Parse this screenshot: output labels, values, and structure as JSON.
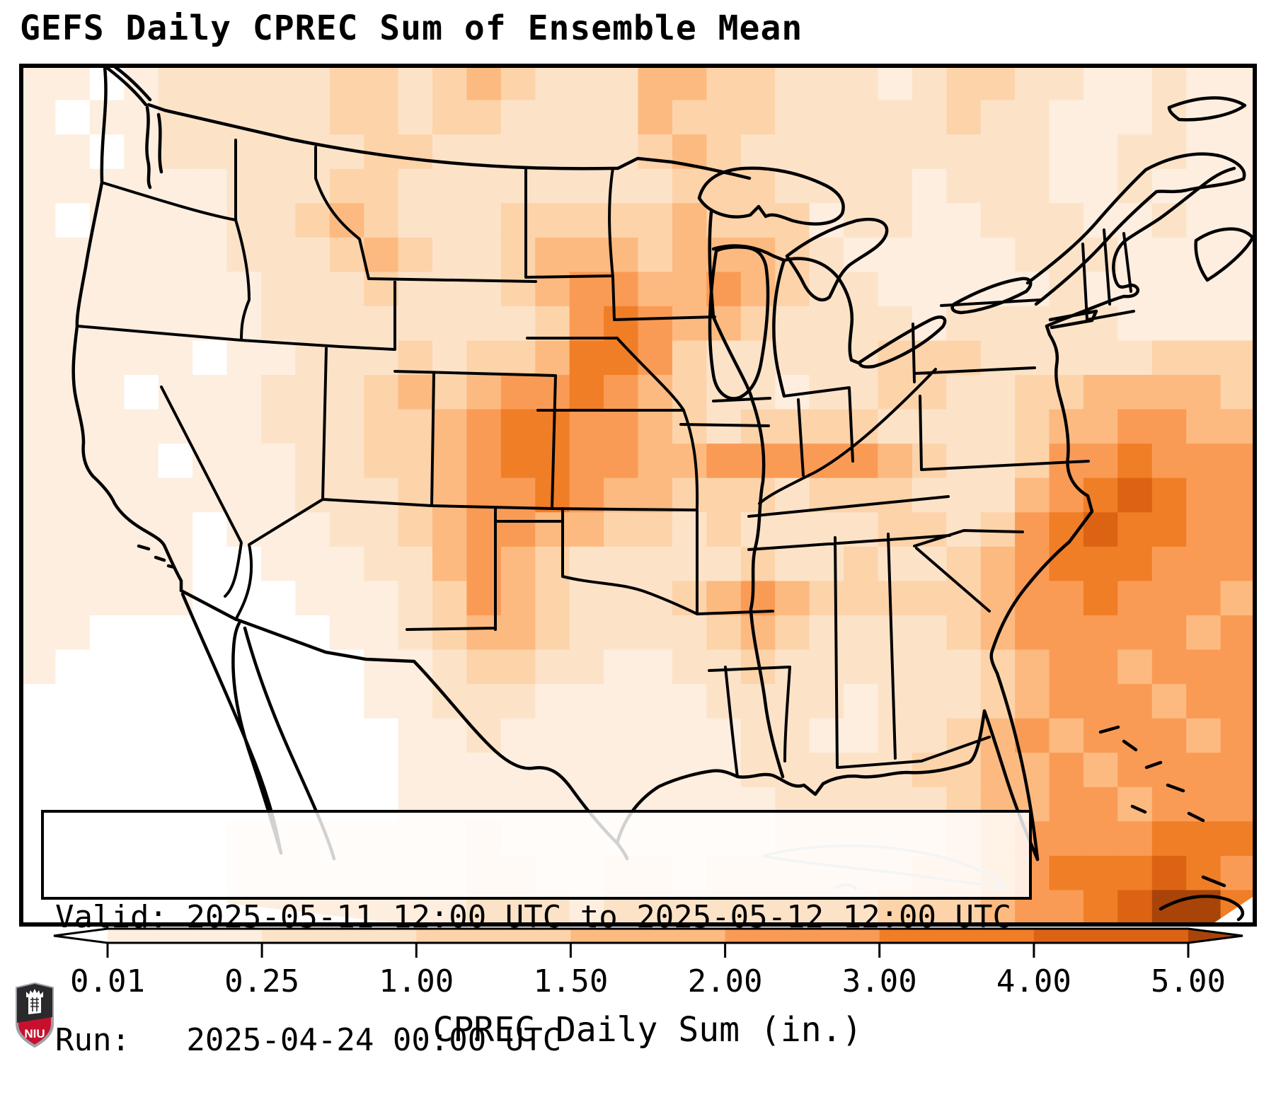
{
  "title": "GEFS Daily CPREC Sum of Ensemble Mean",
  "info_box": {
    "valid_line": "Valid: 2025-05-11 12:00 UTC to 2025-05-12 12:00 UTC",
    "run_line": "Run:   2025-04-24 00:00 UTC"
  },
  "colorbar": {
    "label": "CPREC Daily Sum (in.)",
    "tick_labels": [
      "0.01",
      "0.25",
      "1.00",
      "1.50",
      "2.00",
      "3.00",
      "4.00",
      "5.00"
    ],
    "extend": "both",
    "under_color": "#ffffff",
    "over_color": "#a84408"
  },
  "logo": {
    "text": "NIU",
    "red": "#c8102e",
    "dark": "#2a2a2c",
    "silver": "#9ea2a6"
  },
  "chart_data": {
    "type": "heatmap",
    "title": "GEFS Daily CPREC Sum of Ensemble Mean",
    "variable": "CPREC Daily Sum (in.)",
    "units": "inches",
    "valid": "2025-05-11 12:00 UTC to 2025-05-12 12:00 UTC",
    "run": "2025-04-24 00:00 UTC",
    "region": "CONUS with adjacent Canada, Mexico, Gulf of Mexico and western Atlantic",
    "colorbar_levels": [
      0.01,
      0.25,
      1.0,
      1.5,
      2.0,
      3.0,
      4.0,
      5.0
    ],
    "colorbar_extend": "both",
    "palette": [
      "#ffffff",
      "#fdeedf",
      "#fce3c8",
      "#fdd3aa",
      "#fcba80",
      "#fa9b55",
      "#f07e26",
      "#dd6314",
      "#a84408"
    ],
    "level_ranges": [
      "<0.01",
      "0.01-0.25",
      "0.25-1.00",
      "1.00-1.50",
      "1.50-2.00",
      "2.00-3.00",
      "3.00-4.00",
      "4.00-5.00",
      ">5.00"
    ],
    "grid_cols": 36,
    "grid_rows": 25,
    "grid_encoding": "one character per cell; character = index into palette/level_ranges",
    "grid": [
      "110122222332343222443322212332211211",
      "101122222332332222433322222322111211",
      "110122222233222222343222222222112211",
      "111111222332222222233322221222112111",
      "101111223432223333343331221122211211",
      "111111222343223444344432111112221111",
      "111111122232223455445432211111211111",
      "111111122222222356544322221222221111",
      "111110112223233466532222233322222333",
      "111011122234345565432212233223344443",
      "111111122233456655432333322223445544",
      "111101112233456655445555543223556555",
      "111111112223455654433323332224567655",
      "111110111223455443323222233235676655",
      "111110011122454322222322322345666555",
      "111110001112354322234543333345565554",
      "110000000112344322223432222345555545",
      "100000000011233221122322222234554555",
      "000000000011222111112222122234555455",
      "000000000001121111111221122345455545",
      "000000000001111111111222223344545555",
      "000000000001111111111122222344554555",
      "000000111111121111111122222345555666",
      "000000111111122112212222223345666765",
      "000000111111122212222222233345567886"
    ],
    "highlights": [
      "2-3+ in. maximum over Iowa / upper Midwest",
      "2-3 in. band Kansas-Oklahoma-central Texas",
      "2-3 in. band along Tennessee",
      "3-5+ in. broad maximum over western Atlantic off the Southeast coast",
      "darkest >5 in. cells near bottom-right (Caribbean)",
      "white (<0.01 in.) over southern California, Baja and northwest Mexico"
    ]
  }
}
